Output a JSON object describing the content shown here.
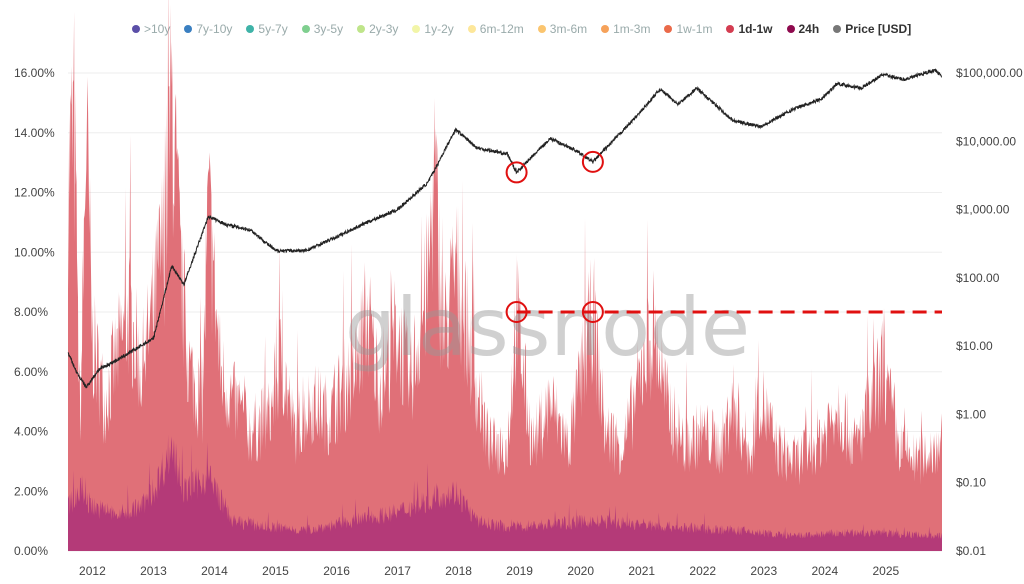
{
  "chart_data": {
    "type": "area",
    "title": "",
    "watermark": "glassnode",
    "legend": {
      "placement": "top",
      "items": [
        {
          "name": ">10y",
          "color": "#5b4fa8",
          "active": false
        },
        {
          "name": "7y-10y",
          "color": "#3a7fc1",
          "active": false
        },
        {
          "name": "5y-7y",
          "color": "#3fb3a8",
          "active": false
        },
        {
          "name": "3y-5y",
          "color": "#7fcf8f",
          "active": false
        },
        {
          "name": "2y-3y",
          "color": "#bfe58a",
          "active": false
        },
        {
          "name": "1y-2y",
          "color": "#f2f5a8",
          "active": false
        },
        {
          "name": "6m-12m",
          "color": "#fde79a",
          "active": false
        },
        {
          "name": "3m-6m",
          "color": "#fbc56f",
          "active": false
        },
        {
          "name": "1m-3m",
          "color": "#f6a25a",
          "active": false
        },
        {
          "name": "1w-1m",
          "color": "#ea6a4a",
          "active": false
        },
        {
          "name": "1d-1w",
          "color": "#d43d51",
          "active": true
        },
        {
          "name": "24h",
          "color": "#8e0a4e",
          "active": true
        },
        {
          "name": "Price [USD]",
          "color": "#777777",
          "active": true
        }
      ]
    },
    "x_ticks": [
      "2012",
      "2013",
      "2014",
      "2015",
      "2016",
      "2017",
      "2018",
      "2019",
      "2020",
      "2021",
      "2022",
      "2023",
      "2024",
      "2025"
    ],
    "xlim": [
      2011.6,
      2025.92
    ],
    "y_left": {
      "ticks": [
        "0.00%",
        "2.00%",
        "4.00%",
        "6.00%",
        "8.00%",
        "10.00%",
        "12.00%",
        "14.00%",
        "16.00%"
      ],
      "ylim": [
        0,
        16
      ]
    },
    "y_right": {
      "scale": "log",
      "ticks": [
        "$0.01",
        "$0.10",
        "$1.00",
        "$10.00",
        "$100.00",
        "$1,000.00",
        "$10,000.00",
        "$100,000.00"
      ],
      "ylim": [
        0.01,
        100000
      ]
    },
    "series": [
      {
        "name": "1d-1w",
        "color": "#e07078",
        "points": [
          [
            2011.6,
            12.5
          ],
          [
            2011.7,
            14.4
          ],
          [
            2011.8,
            4
          ],
          [
            2011.9,
            14.2
          ],
          [
            2012.0,
            7
          ],
          [
            2012.2,
            5
          ],
          [
            2012.4,
            6.5
          ],
          [
            2012.6,
            8
          ],
          [
            2012.8,
            6
          ],
          [
            2013.0,
            8
          ],
          [
            2013.2,
            11
          ],
          [
            2013.3,
            15.2
          ],
          [
            2013.45,
            9
          ],
          [
            2013.6,
            6
          ],
          [
            2013.8,
            5
          ],
          [
            2013.9,
            11.5
          ],
          [
            2014.1,
            6
          ],
          [
            2014.3,
            5
          ],
          [
            2014.6,
            4
          ],
          [
            2014.9,
            4.5
          ],
          [
            2015.1,
            6.5
          ],
          [
            2015.3,
            4
          ],
          [
            2015.6,
            5
          ],
          [
            2015.9,
            4.5
          ],
          [
            2016.1,
            5.5
          ],
          [
            2016.3,
            6
          ],
          [
            2016.5,
            8
          ],
          [
            2016.7,
            5.5
          ],
          [
            2017.0,
            7.5
          ],
          [
            2017.2,
            5.5
          ],
          [
            2017.5,
            9
          ],
          [
            2017.6,
            12.8
          ],
          [
            2017.75,
            7
          ],
          [
            2017.95,
            9.5
          ],
          [
            2018.1,
            8
          ],
          [
            2018.3,
            5.5
          ],
          [
            2018.5,
            3.5
          ],
          [
            2018.8,
            3.5
          ],
          [
            2018.95,
            8
          ],
          [
            2019.2,
            3.5
          ],
          [
            2019.5,
            5
          ],
          [
            2019.8,
            3.5
          ],
          [
            2020.2,
            8
          ],
          [
            2020.4,
            4
          ],
          [
            2020.7,
            3.5
          ],
          [
            2021.0,
            6
          ],
          [
            2021.2,
            7.5
          ],
          [
            2021.4,
            5
          ],
          [
            2021.7,
            3.5
          ],
          [
            2022.0,
            4
          ],
          [
            2022.3,
            3.5
          ],
          [
            2022.5,
            5
          ],
          [
            2022.8,
            3
          ],
          [
            2022.9,
            5.5
          ],
          [
            2023.2,
            3.5
          ],
          [
            2023.5,
            3
          ],
          [
            2023.8,
            3.5
          ],
          [
            2024.0,
            4
          ],
          [
            2024.2,
            5
          ],
          [
            2024.5,
            3.5
          ],
          [
            2024.8,
            5
          ],
          [
            2024.95,
            6.2
          ],
          [
            2025.2,
            3.5
          ],
          [
            2025.5,
            3
          ],
          [
            2025.8,
            3.5
          ],
          [
            2025.92,
            4
          ]
        ]
      },
      {
        "name": "24h",
        "color": "#b43a78",
        "points": [
          [
            2011.6,
            1.5
          ],
          [
            2011.8,
            2
          ],
          [
            2012.0,
            1.5
          ],
          [
            2012.4,
            1.2
          ],
          [
            2012.8,
            1.5
          ],
          [
            2013.0,
            2
          ],
          [
            2013.3,
            3.5
          ],
          [
            2013.5,
            2
          ],
          [
            2013.9,
            2.5
          ],
          [
            2014.3,
            1
          ],
          [
            2014.9,
            0.8
          ],
          [
            2015.5,
            0.7
          ],
          [
            2016.0,
            0.9
          ],
          [
            2016.5,
            1.1
          ],
          [
            2017.0,
            1.3
          ],
          [
            2017.6,
            1.8
          ],
          [
            2017.95,
            2
          ],
          [
            2018.3,
            1
          ],
          [
            2018.8,
            0.8
          ],
          [
            2019.5,
            0.9
          ],
          [
            2020.2,
            1
          ],
          [
            2021.0,
            0.9
          ],
          [
            2021.5,
            0.8
          ],
          [
            2022.5,
            0.7
          ],
          [
            2023.5,
            0.5
          ],
          [
            2024.2,
            0.6
          ],
          [
            2025.0,
            0.6
          ],
          [
            2025.92,
            0.5
          ]
        ]
      },
      {
        "name": "Price [USD]",
        "color": "#222222",
        "axis": "right",
        "points": [
          [
            2011.6,
            8
          ],
          [
            2011.75,
            4
          ],
          [
            2011.9,
            2.5
          ],
          [
            2012.1,
            4.5
          ],
          [
            2012.5,
            7
          ],
          [
            2013.0,
            13
          ],
          [
            2013.3,
            150
          ],
          [
            2013.5,
            80
          ],
          [
            2013.9,
            800
          ],
          [
            2014.2,
            600
          ],
          [
            2014.6,
            500
          ],
          [
            2015.0,
            250
          ],
          [
            2015.5,
            250
          ],
          [
            2016.0,
            400
          ],
          [
            2016.5,
            650
          ],
          [
            2017.0,
            1000
          ],
          [
            2017.5,
            2500
          ],
          [
            2017.95,
            15000
          ],
          [
            2018.3,
            8000
          ],
          [
            2018.8,
            6500
          ],
          [
            2018.95,
            3500
          ],
          [
            2019.5,
            11000
          ],
          [
            2019.9,
            7500
          ],
          [
            2020.2,
            5000
          ],
          [
            2020.5,
            9500
          ],
          [
            2020.95,
            25000
          ],
          [
            2021.3,
            58000
          ],
          [
            2021.6,
            35000
          ],
          [
            2021.9,
            60000
          ],
          [
            2022.5,
            20000
          ],
          [
            2022.95,
            16500
          ],
          [
            2023.5,
            30000
          ],
          [
            2023.95,
            42000
          ],
          [
            2024.2,
            70000
          ],
          [
            2024.6,
            60000
          ],
          [
            2024.95,
            95000
          ],
          [
            2025.3,
            80000
          ],
          [
            2025.8,
            110000
          ],
          [
            2025.92,
            90000
          ]
        ]
      }
    ],
    "annotations": {
      "dashed_line": {
        "y": 8,
        "x_from": 2018.95,
        "x_to": 2025.92,
        "color": "#e01010"
      },
      "circles": [
        {
          "x": 2018.95,
          "y": 8
        },
        {
          "x": 2020.2,
          "y": 8
        },
        {
          "x": 2018.95,
          "price": 3500
        },
        {
          "x": 2020.2,
          "price": 5000
        }
      ]
    },
    "grid": true
  }
}
